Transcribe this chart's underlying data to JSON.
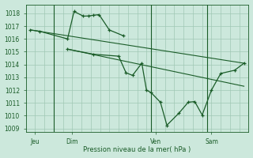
{
  "background_color": "#cce8dc",
  "grid_color": "#a0c8b4",
  "line_color": "#1a5c28",
  "xlabel": "Pression niveau de la mer( hPa )",
  "ylim": [
    1008.7,
    1018.7
  ],
  "yticks": [
    1009,
    1010,
    1011,
    1012,
    1013,
    1014,
    1015,
    1016,
    1017,
    1018
  ],
  "xlim": [
    0,
    24
  ],
  "xtick_labels": [
    "Jeu",
    "Dim",
    "Ven",
    "Sam"
  ],
  "xtick_positions": [
    1,
    5,
    14,
    20
  ],
  "vline_positions": [
    3,
    13.5,
    19.5
  ],
  "series1_x": [
    0.5,
    1.5,
    4.5,
    5.2,
    6.2,
    6.8,
    7.3,
    7.9,
    9.0,
    10.5
  ],
  "series1_y": [
    1016.7,
    1016.6,
    1016.0,
    1018.15,
    1017.78,
    1017.8,
    1017.85,
    1017.9,
    1016.7,
    1016.25
  ],
  "series2_x": [
    4.5,
    7.3,
    10.0,
    10.8,
    11.5,
    12.5,
    13.0,
    13.5,
    14.5,
    15.2,
    16.5,
    17.5,
    18.2,
    19.0,
    20.0,
    21.0,
    22.5,
    23.5
  ],
  "series2_y": [
    1015.2,
    1014.8,
    1014.65,
    1013.35,
    1013.15,
    1014.1,
    1012.0,
    1011.8,
    1011.05,
    1009.25,
    1010.2,
    1011.05,
    1011.1,
    1010.05,
    1012.0,
    1013.3,
    1013.55,
    1014.1
  ],
  "trend1_x": [
    0.5,
    23.5
  ],
  "trend1_y": [
    1016.7,
    1014.1
  ],
  "trend2_x": [
    4.5,
    23.5
  ],
  "trend2_y": [
    1015.2,
    1012.3
  ],
  "figsize": [
    3.2,
    2.0
  ],
  "dpi": 100
}
